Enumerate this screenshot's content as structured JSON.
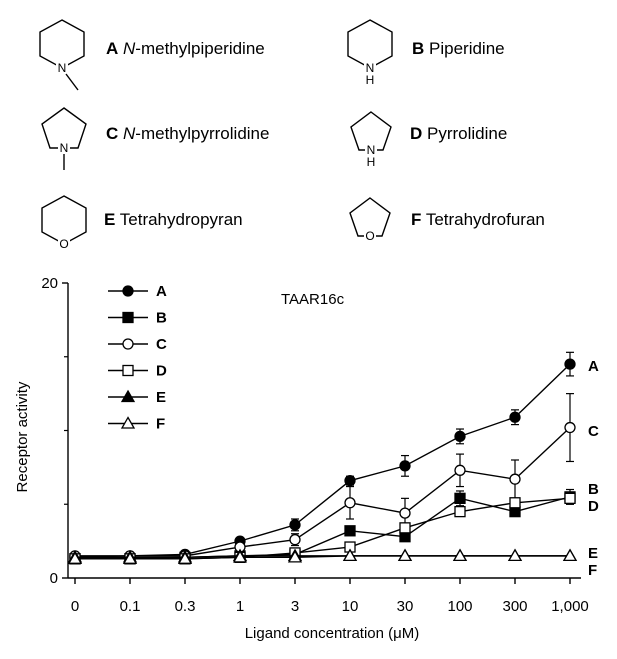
{
  "compounds": [
    {
      "letter": "A",
      "pre": "",
      "italic": "N",
      "name": "-methylpiperidine",
      "ring": "six",
      "atom": "N",
      "methyl": true
    },
    {
      "letter": "B",
      "pre": "",
      "italic": "",
      "name": "Piperidine",
      "ring": "six",
      "atom": "N",
      "h": "H",
      "methyl": false
    },
    {
      "letter": "C",
      "pre": "",
      "italic": "N",
      "name": "-methylpyrrolidine",
      "ring": "five",
      "atom": "N",
      "methyl": true
    },
    {
      "letter": "D",
      "pre": "",
      "italic": "",
      "name": "Pyrrolidine",
      "ring": "five",
      "atom": "N",
      "h": "H",
      "methyl": false
    },
    {
      "letter": "E",
      "pre": "",
      "italic": "",
      "name": "Tetrahydropyran",
      "ring": "six",
      "atom": "O",
      "methyl": false
    },
    {
      "letter": "F",
      "pre": "",
      "italic": "",
      "name": "Tetrahydrofuran",
      "ring": "five",
      "atom": "O",
      "methyl": false
    }
  ],
  "chart_data": {
    "type": "line",
    "title": "TAAR16c",
    "xlabel": "Ligand concentration (μM)",
    "ylabel": "Receptor activity",
    "categories": [
      "0",
      "0.1",
      "0.3",
      "1",
      "3",
      "10",
      "30",
      "100",
      "300",
      "1,000"
    ],
    "ylim": [
      0,
      20
    ],
    "yticks": [
      "0",
      "20"
    ],
    "series": [
      {
        "name": "A",
        "marker": "circle",
        "filled": true,
        "values": [
          1.4,
          1.5,
          1.6,
          2.5,
          3.6,
          6.6,
          7.6,
          9.6,
          10.9,
          14.5
        ],
        "errors": [
          0.15,
          0.1,
          0.1,
          0.2,
          0.4,
          0.3,
          0.7,
          0.5,
          0.5,
          0.8
        ]
      },
      {
        "name": "B",
        "marker": "square",
        "filled": true,
        "values": [
          1.3,
          1.3,
          1.4,
          1.5,
          1.6,
          3.2,
          2.8,
          5.4,
          4.5,
          5.5
        ],
        "errors": [
          0.1,
          0.1,
          0.1,
          0.1,
          0.1,
          0.2,
          0.2,
          0.5,
          0.2,
          0.5
        ]
      },
      {
        "name": "C",
        "marker": "circle",
        "filled": false,
        "values": [
          1.5,
          1.5,
          1.5,
          2.1,
          2.6,
          5.1,
          4.4,
          7.3,
          6.7,
          10.2
        ],
        "errors": [
          0.1,
          0.1,
          0.1,
          0.2,
          0.4,
          1.1,
          1.0,
          1.1,
          1.3,
          2.3
        ]
      },
      {
        "name": "D",
        "marker": "square",
        "filled": false,
        "values": [
          1.3,
          1.3,
          1.3,
          1.4,
          1.7,
          2.1,
          3.4,
          4.5,
          5.1,
          5.4
        ],
        "errors": [
          0.1,
          0.1,
          0.1,
          0.1,
          0.1,
          0.1,
          0.3,
          0.3,
          0.3,
          0.4
        ]
      },
      {
        "name": "E",
        "marker": "triangle",
        "filled": true,
        "values": [
          1.4,
          1.4,
          1.4,
          1.5,
          1.5,
          1.5,
          1.5,
          1.5,
          1.5,
          1.5
        ],
        "errors": [
          0.05,
          0.05,
          0.05,
          0.05,
          0.05,
          0.05,
          0.05,
          0.05,
          0.05,
          0.05
        ]
      },
      {
        "name": "F",
        "marker": "triangle",
        "filled": false,
        "values": [
          1.3,
          1.3,
          1.3,
          1.4,
          1.4,
          1.5,
          1.5,
          1.5,
          1.5,
          1.5
        ],
        "errors": [
          0.05,
          0.05,
          0.05,
          0.05,
          0.05,
          0.05,
          0.05,
          0.05,
          0.05,
          0.05
        ]
      }
    ],
    "end_labels": [
      "A",
      "C",
      "B",
      "D",
      "E",
      "F"
    ],
    "legend": "top-left"
  }
}
